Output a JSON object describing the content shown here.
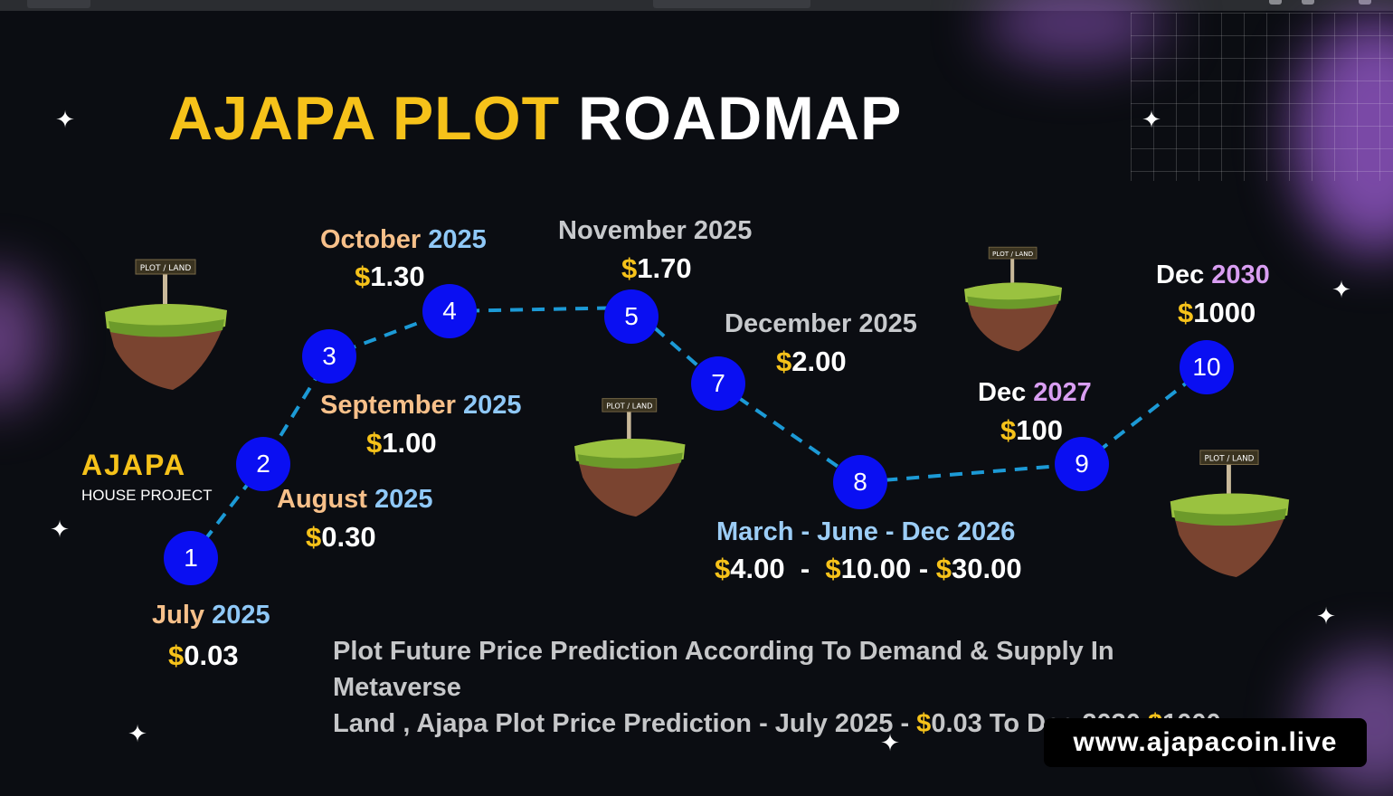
{
  "title": {
    "part1": "AJAPA PLOT",
    "part2": "ROADMAP"
  },
  "brand": {
    "name": "AJAPA",
    "subtitle": "HOUSE PROJECT"
  },
  "sign_text": "PLOT / LAND",
  "milestones": [
    {
      "n": "1",
      "month": "July",
      "year": "2025",
      "price": "0.03"
    },
    {
      "n": "2",
      "month": "August",
      "year": "2025",
      "price": "0.30"
    },
    {
      "n": "3",
      "month": "September",
      "year": "2025",
      "price": "1.00"
    },
    {
      "n": "4",
      "month": "October",
      "year": "2025",
      "price": "1.30"
    },
    {
      "n": "5",
      "month": "November",
      "year": "2025",
      "price": "1.70"
    },
    {
      "n": "7",
      "month": "December",
      "year": "2025",
      "price": "2.00"
    },
    {
      "n": "8",
      "month": "March - June - Dec 2026",
      "year": "",
      "prices": [
        "4.00",
        "10.00",
        "30.00"
      ]
    },
    {
      "n": "9",
      "month": "Dec",
      "year": "2027",
      "price": "100"
    },
    {
      "n": "10",
      "month": "Dec",
      "year": "2030",
      "price": "1000"
    }
  ],
  "description": {
    "line1": "Plot Future Price Prediction According To Demand & Supply In Metaverse",
    "line2_a": "Land , Ajapa Plot Price Prediction - July 2025 - ",
    "line2_b": "0.03 To  Dec 2030 ",
    "line2_c": "1000."
  },
  "currency_symbol": "$",
  "website": "www.ajapacoin.live",
  "colors": {
    "accent_yellow": "#f6c21a",
    "node_blue": "#0a0ff2",
    "dash_blue": "#1c9ad6",
    "background": "#0b0d12"
  }
}
